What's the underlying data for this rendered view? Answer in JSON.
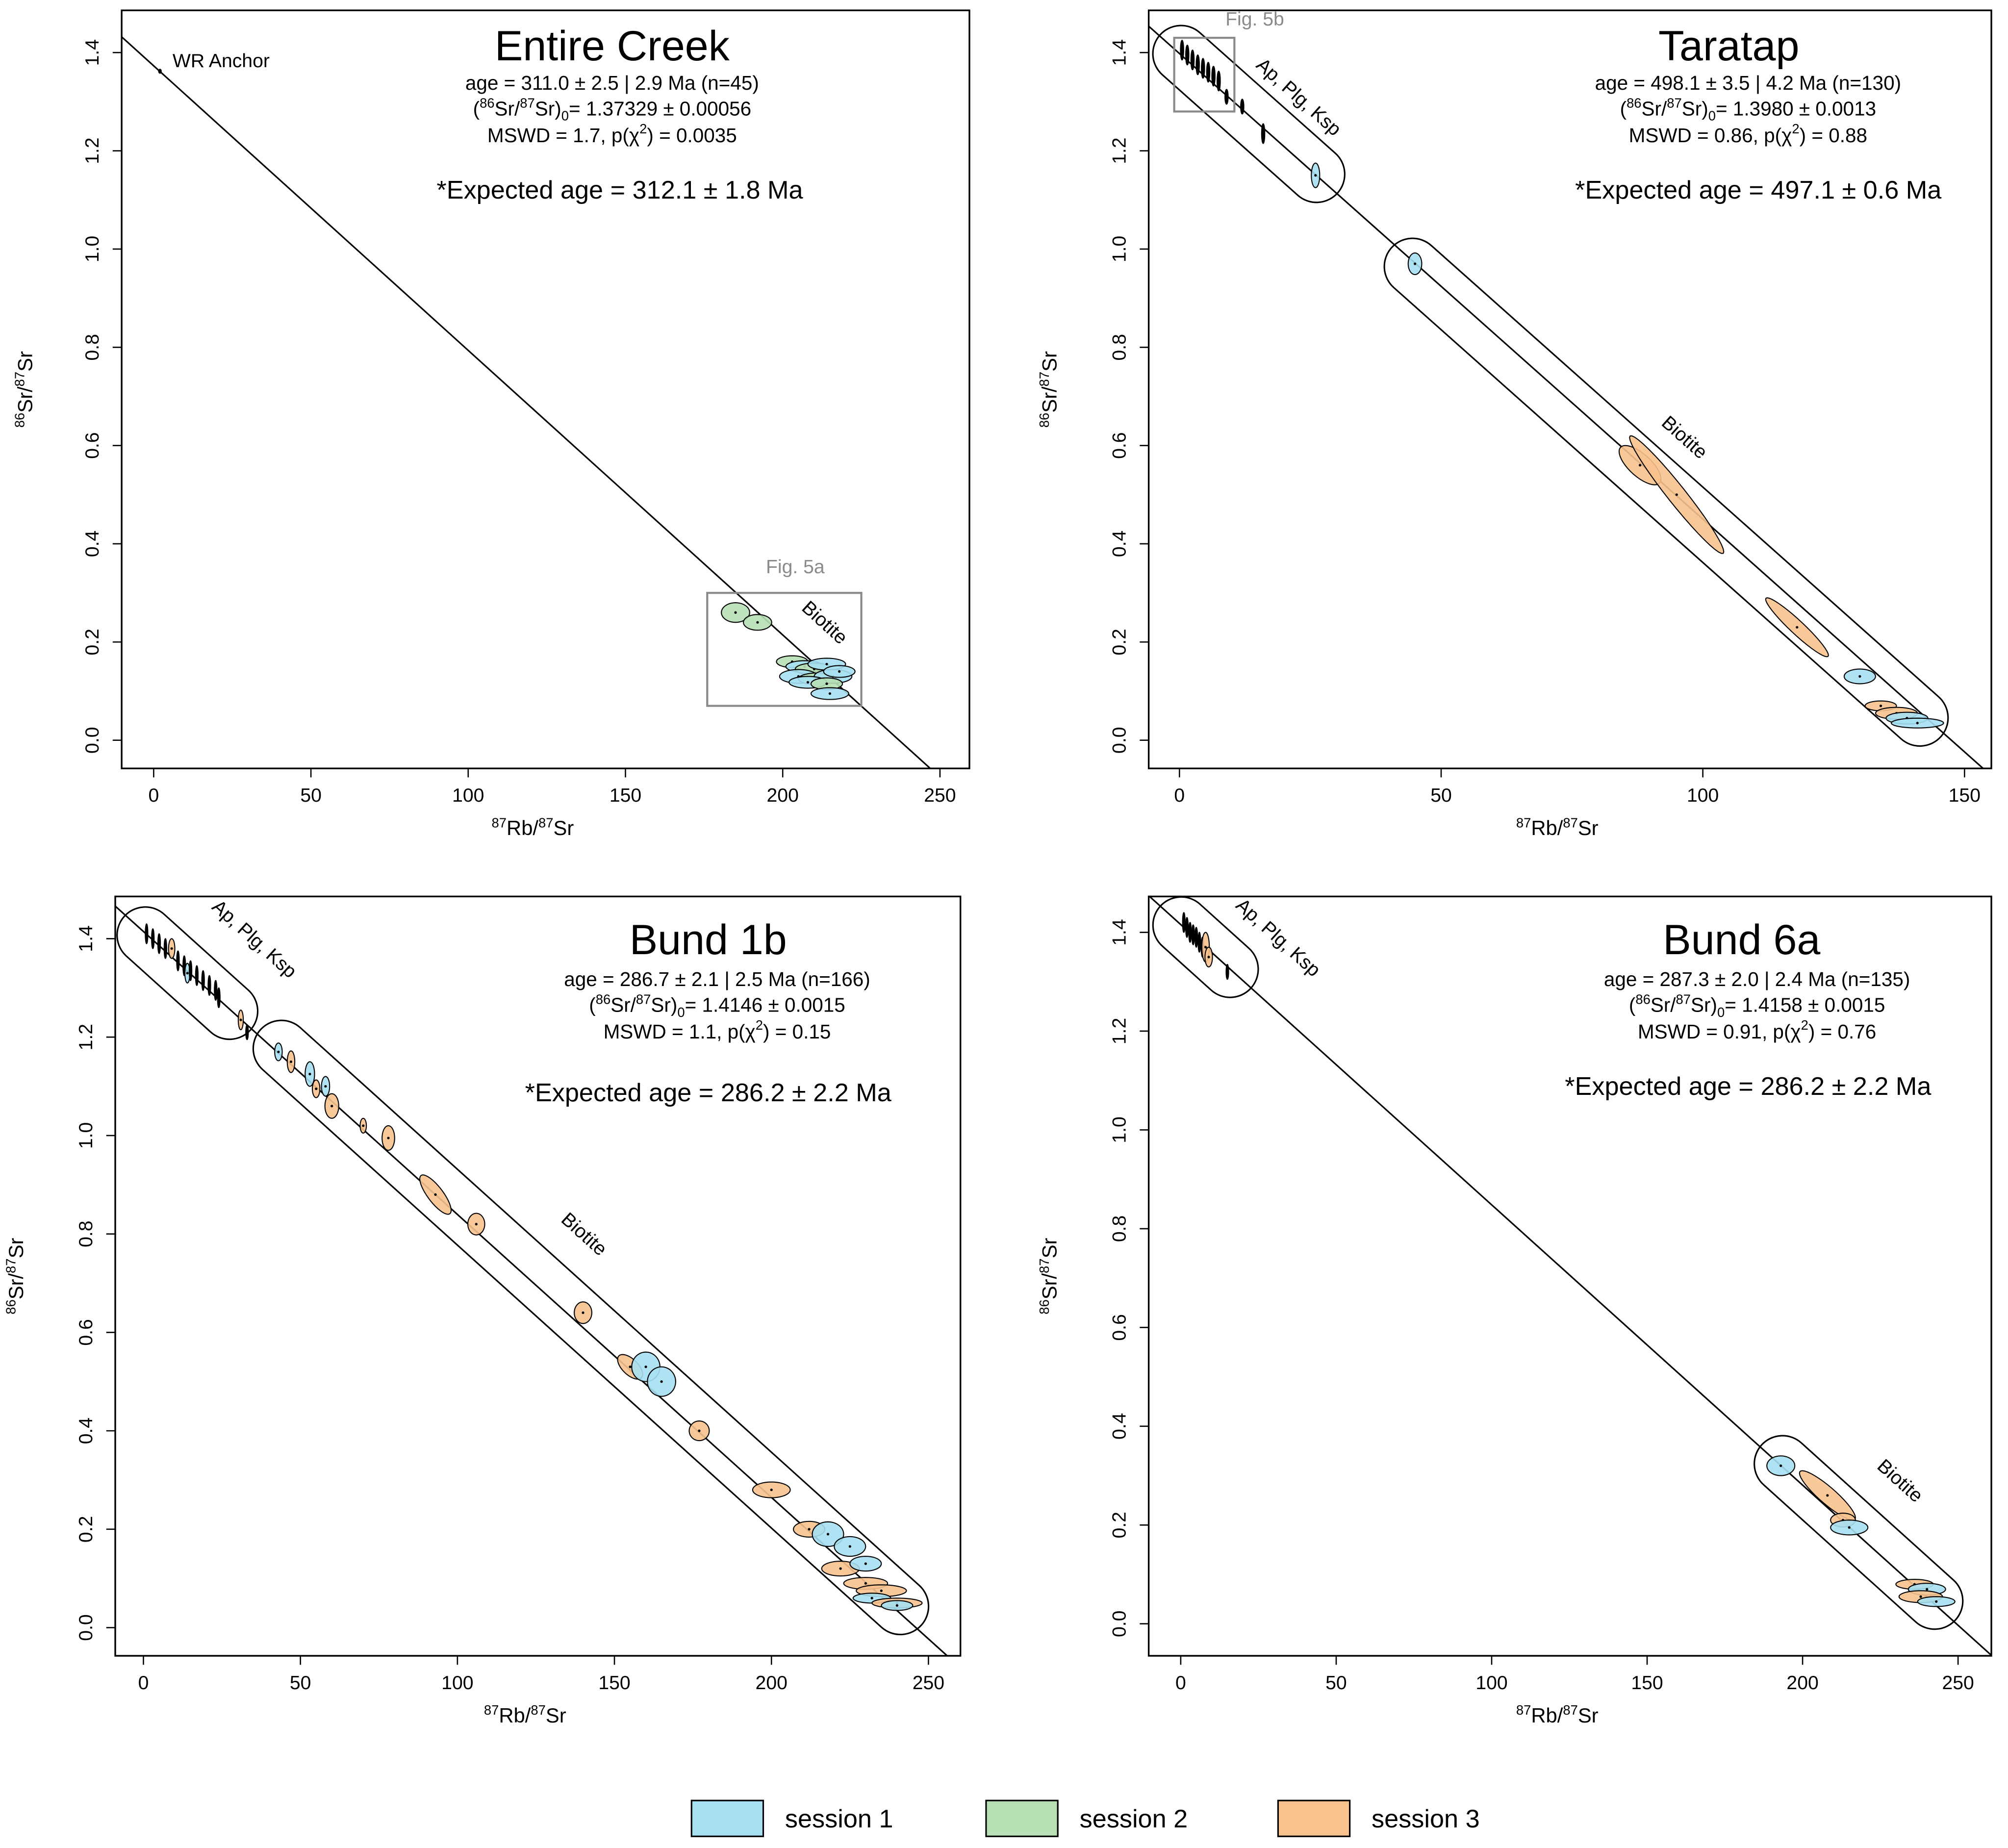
{
  "labels": {
    "age_prefix": "age = ",
    "ratio_open": "(",
    "ratio_sup1": "86",
    "ratio_mid": "Sr/",
    "ratio_sup2": "87",
    "ratio_close": "Sr)",
    "ratio_sub": "0",
    "ratio_eq": "= ",
    "mswd_prefix": "MSWD = ",
    "p_prefix": ", p(χ",
    "p_sup": "2",
    "p_close": ") = ",
    "expected_prefix": "*Expected age = ",
    "xlabel_parts": [
      "87",
      "Rb/",
      "87",
      "Sr"
    ],
    "ylabel_parts": [
      "86",
      "Sr/",
      "87",
      "Sr"
    ]
  },
  "colors": {
    "session 1": "#a6e0f2",
    "session 2": "#b7e0b5",
    "session 3": "#f8c28e",
    "none": "#000000"
  },
  "legend": [
    {
      "label": "session 1",
      "color": "#a6e0f2"
    },
    {
      "label": "session 2",
      "color": "#b7e0b5"
    },
    {
      "label": "session 3",
      "color": "#f8c28e"
    }
  ],
  "chart_data": [
    {
      "type": "scatter",
      "title": "Entire Creek",
      "age": "311.0 ± 2.5 | 2.9 Ma (n=45)",
      "initial_ratio": "1.37329 ± 0.00056",
      "mswd": "1.7",
      "p_chi2": "0.0035",
      "expected_age": "312.1 ± 1.8 Ma",
      "xlim": [
        -10,
        260
      ],
      "ylim": [
        -0.06,
        1.46
      ],
      "xticks": [
        0,
        50,
        100,
        150,
        200,
        250
      ],
      "yticks": [
        "0.0",
        "0.2",
        "0.4",
        "0.6",
        "0.8",
        "1.0",
        "1.2",
        "1.4"
      ],
      "isochron": {
        "intercept": 1.373,
        "slope": -0.005793
      },
      "annotations": [
        {
          "text": "WR Anchor",
          "x": 6,
          "y": 1.37,
          "along_line": false
        },
        {
          "text": "Biotite",
          "x": 212,
          "y": 0.23,
          "along_line": true
        },
        {
          "text": "Fig. 5a",
          "x": 204,
          "y": 0.34,
          "along_line": false,
          "gray": true
        }
      ],
      "inset_box": {
        "x": [
          176,
          225
        ],
        "y": [
          0.07,
          0.3
        ]
      },
      "envelopes": [],
      "points": [
        [
          2,
          1.362,
          "none",
          0.4,
          0.004,
          0
        ],
        [
          185,
          0.26,
          "session 2",
          4.5,
          0.02,
          0
        ],
        [
          192,
          0.24,
          "session 2",
          4.5,
          0.016,
          0
        ],
        [
          203,
          0.16,
          "session 2",
          5,
          0.012,
          0
        ],
        [
          207,
          0.15,
          "session 1",
          6,
          0.012,
          0
        ],
        [
          210,
          0.145,
          "session 2",
          6,
          0.012,
          0
        ],
        [
          214,
          0.155,
          "session 1",
          6,
          0.012,
          0
        ],
        [
          205,
          0.13,
          "session 1",
          6,
          0.014,
          0
        ],
        [
          211,
          0.125,
          "session 2",
          6,
          0.012,
          0
        ],
        [
          216,
          0.13,
          "session 1",
          6,
          0.014,
          0
        ],
        [
          208,
          0.118,
          "session 1",
          6,
          0.012,
          0
        ],
        [
          214,
          0.115,
          "session 2",
          5,
          0.012,
          0
        ],
        [
          218,
          0.14,
          "session 1",
          5,
          0.012,
          0
        ],
        [
          215,
          0.095,
          "session 1",
          6,
          0.012,
          0
        ]
      ]
    },
    {
      "type": "scatter",
      "title": "Taratap",
      "age": "498.1 ± 3.5 | 4.2  Ma (n=130)",
      "initial_ratio": "1.3980 ± 0.0013",
      "mswd": "0.86",
      "p_chi2": "0.88",
      "expected_age": "497.1 ± 0.6 Ma",
      "xlim": [
        -6,
        155
      ],
      "ylim": [
        -0.06,
        1.46
      ],
      "xticks": [
        0,
        50,
        100,
        150
      ],
      "yticks": [
        "0.0",
        "0.2",
        "0.4",
        "0.6",
        "0.8",
        "1.0",
        "1.2",
        "1.4"
      ],
      "isochron": {
        "intercept": 1.398,
        "slope": -0.009478
      },
      "annotations": [
        {
          "text": "Ap, Plg, Ksp",
          "x": 22,
          "y": 1.3,
          "along_line": true
        },
        {
          "text": "Biotite",
          "x": 95.7,
          "y": 0.607,
          "along_line": true
        },
        {
          "text": "Fig. 5b",
          "x": 14.4,
          "y": 1.455,
          "along_line": false,
          "gray": true
        }
      ],
      "inset_box": {
        "x": [
          -1,
          10.5
        ],
        "y": [
          1.28,
          1.43
        ]
      },
      "envelopes": [
        {
          "from": [
            0.5,
            1.4
          ],
          "to": [
            26,
            1.15
          ]
        },
        {
          "from": [
            45,
            0.97
          ],
          "to": [
            141,
            0.04
          ]
        }
      ],
      "points": [
        [
          0.5,
          1.405,
          "none",
          0.3,
          0.02,
          0
        ],
        [
          1.5,
          1.395,
          "none",
          0.3,
          0.02,
          0
        ],
        [
          2.5,
          1.385,
          "none",
          0.3,
          0.02,
          0
        ],
        [
          3.5,
          1.375,
          "none",
          0.3,
          0.02,
          0
        ],
        [
          4.5,
          1.368,
          "none",
          0.3,
          0.02,
          0
        ],
        [
          5.5,
          1.36,
          "none",
          0.3,
          0.02,
          0
        ],
        [
          6.5,
          1.352,
          "none",
          0.3,
          0.02,
          0
        ],
        [
          7.5,
          1.342,
          "none",
          0.3,
          0.02,
          0
        ],
        [
          9,
          1.31,
          "none",
          0.3,
          0.015,
          0
        ],
        [
          12,
          1.29,
          "none",
          0.3,
          0.015,
          0
        ],
        [
          16,
          1.235,
          "none",
          0.3,
          0.02,
          0
        ],
        [
          26,
          1.15,
          "session 1",
          0.8,
          0.025,
          0
        ],
        [
          45,
          0.97,
          "session 1",
          1.3,
          0.022,
          0
        ],
        [
          88,
          0.56,
          "session 3",
          4,
          0.04,
          -0.7
        ],
        [
          95,
          0.5,
          "session 3",
          9,
          0.12,
          -0.97
        ],
        [
          118,
          0.23,
          "session 3",
          6,
          0.06,
          -0.95
        ],
        [
          130,
          0.13,
          "session 1",
          3,
          0.015,
          0
        ],
        [
          134,
          0.07,
          "session 3",
          3,
          0.01,
          0
        ],
        [
          137,
          0.055,
          "session 3",
          4,
          0.012,
          0
        ],
        [
          139,
          0.045,
          "session 1",
          4,
          0.012,
          0
        ],
        [
          141,
          0.035,
          "session 1",
          5,
          0.01,
          0
        ]
      ]
    },
    {
      "type": "scatter",
      "title": "Bund 1b",
      "age": "286.7 ± 2.1 | 2.5  Ma (n=166)",
      "initial_ratio": "1.4146 ± 0.0015",
      "mswd": "1.1",
      "p_chi2": "0.15",
      "expected_age": "286.2 ± 2.2 Ma",
      "xlim": [
        -9,
        260
      ],
      "ylim": [
        -0.06,
        1.47
      ],
      "xticks": [
        0,
        50,
        100,
        150,
        200,
        250
      ],
      "yticks": [
        "0.0",
        "0.2",
        "0.4",
        "0.6",
        "0.8",
        "1.0",
        "1.2",
        "1.4"
      ],
      "isochron": {
        "intercept": 1.4146,
        "slope": -0.00575
      },
      "annotations": [
        {
          "text": "Ap, Plg, Ksp",
          "x": 34,
          "y": 1.39,
          "along_line": true
        },
        {
          "text": "Biotite",
          "x": 139,
          "y": 0.79,
          "along_line": true
        }
      ],
      "inset_box": null,
      "envelopes": [
        {
          "from": [
            1,
            1.41
          ],
          "to": [
            27,
            1.25
          ]
        },
        {
          "from": [
            43,
            1.17
          ],
          "to": [
            242,
            0.05
          ]
        }
      ],
      "points": [
        [
          1,
          1.41,
          "none",
          0.4,
          0.02,
          0
        ],
        [
          3,
          1.4,
          "none",
          0.4,
          0.02,
          0
        ],
        [
          5,
          1.39,
          "none",
          0.4,
          0.02,
          0
        ],
        [
          7,
          1.38,
          "none",
          0.4,
          0.02,
          0
        ],
        [
          9,
          1.38,
          "session 3",
          1,
          0.02,
          0
        ],
        [
          11,
          1.355,
          "none",
          0.4,
          0.02,
          0
        ],
        [
          13,
          1.345,
          "none",
          0.4,
          0.02,
          0
        ],
        [
          14,
          1.33,
          "session 1",
          0.8,
          0.02,
          0
        ],
        [
          15,
          1.335,
          "none",
          0.4,
          0.02,
          0
        ],
        [
          17,
          1.325,
          "none",
          0.4,
          0.02,
          0
        ],
        [
          19,
          1.315,
          "none",
          0.4,
          0.02,
          0
        ],
        [
          21,
          1.305,
          "none",
          0.4,
          0.02,
          0
        ],
        [
          23,
          1.295,
          "none",
          0.4,
          0.02,
          0
        ],
        [
          24,
          1.28,
          "none",
          0.4,
          0.02,
          0
        ],
        [
          31,
          1.235,
          "session 3",
          0.8,
          0.02,
          0
        ],
        [
          33,
          1.21,
          "none",
          0.4,
          0.015,
          0
        ],
        [
          43,
          1.17,
          "session 1",
          1.2,
          0.018,
          0
        ],
        [
          47,
          1.15,
          "session 3",
          1.2,
          0.022,
          0
        ],
        [
          53,
          1.125,
          "session 1",
          1.5,
          0.025,
          0
        ],
        [
          55,
          1.095,
          "session 3",
          1.2,
          0.018,
          0
        ],
        [
          58,
          1.1,
          "session 1",
          1.3,
          0.02,
          0
        ],
        [
          60,
          1.06,
          "session 3",
          2.2,
          0.025,
          0
        ],
        [
          70,
          1.02,
          "session 3",
          1,
          0.015,
          0
        ],
        [
          78,
          0.995,
          "session 3",
          2,
          0.025,
          0
        ],
        [
          93,
          0.88,
          "session 3",
          5,
          0.04,
          -0.8
        ],
        [
          106,
          0.82,
          "session 3",
          2.7,
          0.022,
          0
        ],
        [
          140,
          0.64,
          "session 3",
          2.8,
          0.022,
          0
        ],
        [
          155,
          0.53,
          "session 3",
          4,
          0.025,
          -0.6
        ],
        [
          160,
          0.53,
          "session 1",
          4.5,
          0.03,
          0
        ],
        [
          165,
          0.5,
          "session 1",
          4.5,
          0.03,
          0
        ],
        [
          177,
          0.4,
          "session 3",
          3.2,
          0.02,
          0
        ],
        [
          200,
          0.28,
          "session 3",
          6,
          0.016,
          0
        ],
        [
          212,
          0.2,
          "session 3",
          5,
          0.016,
          0
        ],
        [
          218,
          0.19,
          "session 1",
          5,
          0.025,
          0
        ],
        [
          225,
          0.165,
          "session 1",
          5,
          0.02,
          0
        ],
        [
          222,
          0.12,
          "session 3",
          6,
          0.015,
          0
        ],
        [
          230,
          0.13,
          "session 1",
          5,
          0.015,
          0
        ],
        [
          230,
          0.09,
          "session 3",
          7,
          0.012,
          0
        ],
        [
          235,
          0.075,
          "session 3",
          8,
          0.012,
          0
        ],
        [
          232,
          0.06,
          "session 1",
          6,
          0.01,
          0
        ],
        [
          240,
          0.05,
          "session 3",
          8,
          0.01,
          0
        ],
        [
          240,
          0.045,
          "session 1",
          5,
          0.01,
          0
        ]
      ]
    },
    {
      "type": "scatter",
      "title": "Bund 6a",
      "age": "287.3 ±  2.0 | 2.4  Ma (n=135)",
      "initial_ratio": "1.4158 ± 0.0015",
      "mswd": "0.91",
      "p_chi2": "0.76",
      "expected_age": "286.2 ± 2.2 Ma",
      "xlim": [
        -10,
        261
      ],
      "ylim": [
        -0.06,
        1.48
      ],
      "xticks": [
        0,
        50,
        100,
        150,
        200,
        250
      ],
      "yticks": [
        "0.0",
        "0.2",
        "0.4",
        "0.6",
        "0.8",
        "1.0",
        "1.2",
        "1.4"
      ],
      "isochron": {
        "intercept": 1.4158,
        "slope": -0.005675
      },
      "annotations": [
        {
          "text": "Ap, Plg, Ksp",
          "x": 30,
          "y": 1.38,
          "along_line": true
        },
        {
          "text": "Biotite",
          "x": 230,
          "y": 0.28,
          "along_line": true
        }
      ],
      "inset_box": null,
      "envelopes": [
        {
          "from": [
            1,
            1.42
          ],
          "to": [
            15,
            1.32
          ]
        },
        {
          "from": [
            193,
            0.32
          ],
          "to": [
            243,
            0.05
          ]
        }
      ],
      "points": [
        [
          1,
          1.42,
          "none",
          0.4,
          0.02,
          0
        ],
        [
          2,
          1.41,
          "none",
          0.4,
          0.02,
          0
        ],
        [
          3,
          1.4,
          "none",
          0.4,
          0.02,
          0
        ],
        [
          4,
          1.395,
          "none",
          0.4,
          0.02,
          0
        ],
        [
          5,
          1.39,
          "none",
          0.4,
          0.02,
          0
        ],
        [
          6,
          1.38,
          "none",
          0.4,
          0.02,
          0
        ],
        [
          7,
          1.37,
          "none",
          0.4,
          0.02,
          0
        ],
        [
          8,
          1.37,
          "session 3",
          1.2,
          0.03,
          0
        ],
        [
          9,
          1.35,
          "session 3",
          1.2,
          0.02,
          0
        ],
        [
          15,
          1.32,
          "none",
          0.4,
          0.015,
          0
        ],
        [
          193,
          0.32,
          "session 1",
          4.5,
          0.02,
          0
        ],
        [
          208,
          0.26,
          "session 3",
          9,
          0.05,
          -0.9
        ],
        [
          213,
          0.21,
          "session 3",
          4,
          0.014,
          0
        ],
        [
          215,
          0.195,
          "session 1",
          6,
          0.015,
          0
        ],
        [
          236,
          0.08,
          "session 3",
          6,
          0.01,
          0
        ],
        [
          240,
          0.07,
          "session 1",
          6,
          0.012,
          0
        ],
        [
          238,
          0.055,
          "session 3",
          7,
          0.012,
          0
        ],
        [
          243,
          0.045,
          "session 1",
          6,
          0.01,
          0
        ]
      ]
    }
  ]
}
